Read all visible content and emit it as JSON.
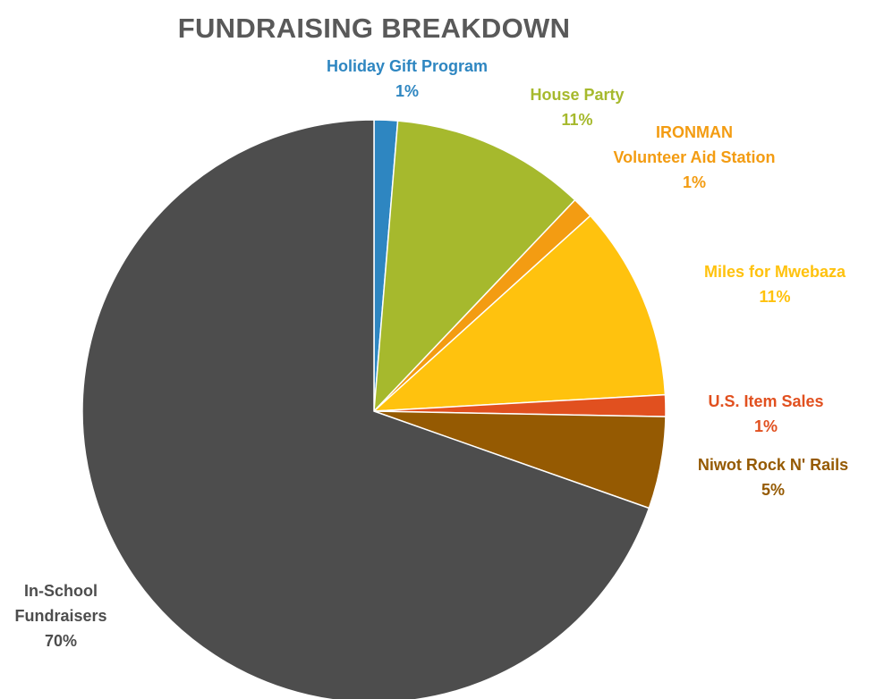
{
  "chart_data": {
    "type": "pie",
    "title": "FUNDRAISING BREAKDOWN",
    "slices": [
      {
        "label_lines": [
          "Holiday Gift Program"
        ],
        "pct_label": "1%",
        "value": 1.3,
        "color": "#2E86C1"
      },
      {
        "label_lines": [
          "House Party"
        ],
        "pct_label": "11%",
        "value": 10.8,
        "color": "#A6B92D"
      },
      {
        "label_lines": [
          "IRONMAN",
          "Volunteer Aid Station"
        ],
        "pct_label": "1%",
        "value": 1.2,
        "color": "#F39C12"
      },
      {
        "label_lines": [
          "Miles for Mwebaza"
        ],
        "pct_label": "11%",
        "value": 10.8,
        "color": "#FFC20E"
      },
      {
        "label_lines": [
          "U.S. Item Sales"
        ],
        "pct_label": "1%",
        "value": 1.2,
        "color": "#E1501F"
      },
      {
        "label_lines": [
          "Niwot Rock N' Rails"
        ],
        "pct_label": "5%",
        "value": 5.1,
        "color": "#955A02"
      },
      {
        "label_lines": [
          "In-School",
          "Fundraisers"
        ],
        "pct_label": "70%",
        "value": 69.6,
        "color": "#4D4D4D"
      }
    ]
  }
}
